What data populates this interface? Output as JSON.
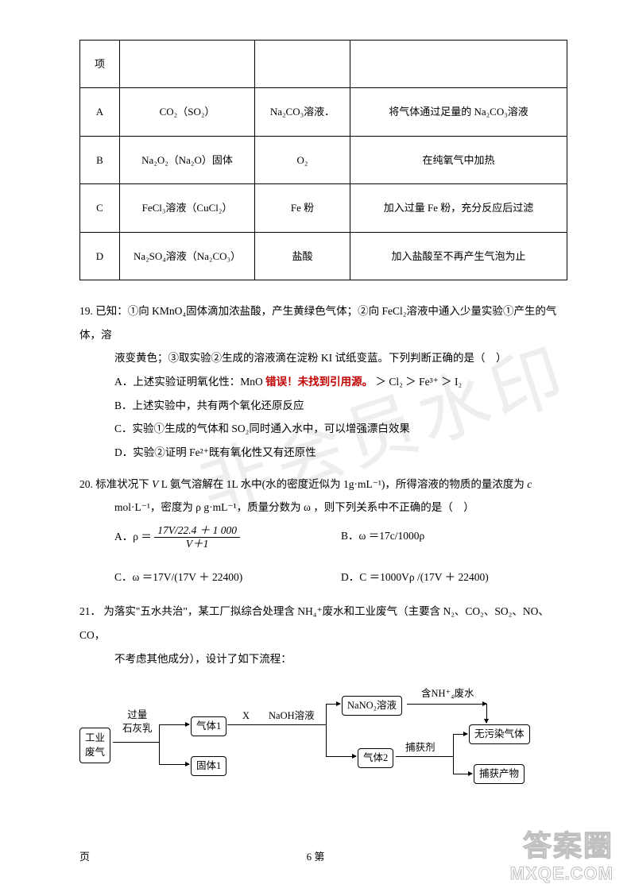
{
  "table": {
    "rows": [
      {
        "label": "项",
        "reagent": "",
        "added": "",
        "operation": ""
      },
      {
        "label": "A",
        "reagent": "CO₂（SO₂）",
        "added": "Na₂CO₃溶液．",
        "operation": "将气体通过足量的 Na₂CO₃溶液"
      },
      {
        "label": "B",
        "reagent": "Na₂O₂（Na₂O）固体",
        "added": "O₂",
        "operation": "在纯氧气中加热"
      },
      {
        "label": "C",
        "reagent": "FeCl₃溶液（CuCl₂）",
        "added": "Fe 粉",
        "operation": "加入过量 Fe 粉，充分反应后过滤"
      },
      {
        "label": "D",
        "reagent": "Na₂SO₄溶液（Na₂CO₃）",
        "added": "盐酸",
        "operation": "加入盐酸至不再产生气泡为止"
      }
    ]
  },
  "q19": {
    "num": "19.",
    "stem1": "已知：①向 KMnO₄固体滴加浓盐酸，产生黄绿色气体；②向 FeCl₂溶液中通入少量实验①产生的气体，溶",
    "stem2": "液变黄色；③取实验②生成的溶液滴在淀粉 KI 试纸变蓝。下列判断正确的是（　）",
    "A_pre": "A．上述实验证明氧化性：MnO ",
    "A_err": "错误！未找到引用源。",
    "A_post": " ＞ Cl₂ ＞ Fe³⁺ ＞ I₂",
    "B": "B．上述实验中，共有两个氧化还原反应",
    "C": "C．实验①生成的气体和 SO₂同时通入水中，可以增强漂白效果",
    "D": "D．实验②证明 Fe²⁺既有氧化性又有还原性"
  },
  "q20": {
    "num": "20.",
    "stem1_pre": "标准状况下 ",
    "stem1_mid": " L 氨气溶解在 1L 水中(水的密度近似为 1g·mL⁻¹)，所得溶液的物质的量浓度为 ",
    "stem2": "mol·L⁻¹，密度为 ρ g·mL⁻¹，质量分数为 ω ，则下列关系中不正确的是（　）",
    "A_lhs": "A．ρ ＝",
    "A_num": "17V/22.4 ＋ 1 000",
    "A_den": "V＋1",
    "B": "B．ω ＝17c/1000ρ",
    "C": "C．ω ＝17V/(17V ＋ 22400)",
    "D": "D．C ＝1000Vρ /(17V ＋ 22400)",
    "V": "V",
    "c": "c"
  },
  "q21": {
    "num": "21．",
    "stem1": "为落实\"五水共治\"，某工厂拟综合处理含 NH₄⁺废水和工业废气（主要含 N₂、CO₂、SO₂、NO、CO，",
    "stem2": "不考虑其他成分），设计了如下流程："
  },
  "flow": {
    "nodes": {
      "industrial": "工业\n废气",
      "gas1": "气体1",
      "solid1": "固体1",
      "nano2": "NaNO₂溶液",
      "gas2": "气体2",
      "clean_gas": "无污染气体",
      "capture_prod": "捕获产物"
    },
    "labels": {
      "lime": "过量\n石灰乳",
      "X": "X",
      "naoh": "NaOH溶液",
      "nh4": "含NH⁺₄废水",
      "capture_agent": "捕获剂"
    }
  },
  "footer_left": "页",
  "footer_center": "6 第",
  "brand1": "答案圈",
  "brand2": "MXQE.COM",
  "watermark": "非会员水印",
  "colors": {
    "text": "#000000",
    "error": "#c00000",
    "wm": "#eeeeee",
    "bg": "#ffffff"
  }
}
